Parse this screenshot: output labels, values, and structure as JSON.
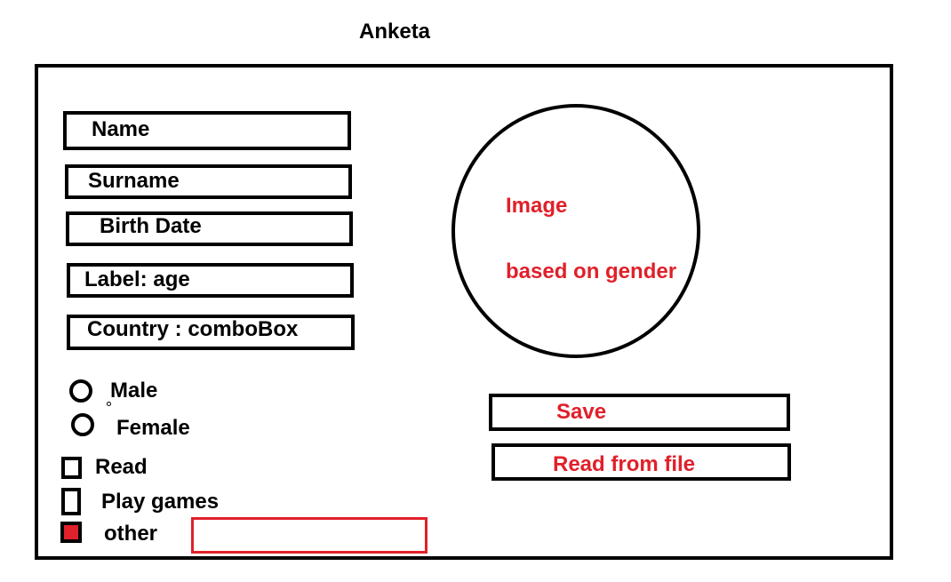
{
  "title": "Anketa",
  "fields": {
    "name": "Name",
    "surname": "Surname",
    "birth_date": "Birth Date",
    "age": "Label:  age",
    "country": "Country : comboBox"
  },
  "image_area": {
    "line1": "Image",
    "line2": "based on gender"
  },
  "gender": {
    "male": "Male",
    "female": "Female"
  },
  "hobbies": {
    "read": "Read",
    "play_games": "Play games",
    "other": "other"
  },
  "buttons": {
    "save": "Save",
    "read_from_file": "Read from file"
  },
  "colors": {
    "accent": "#e0202a",
    "line": "#000000"
  }
}
